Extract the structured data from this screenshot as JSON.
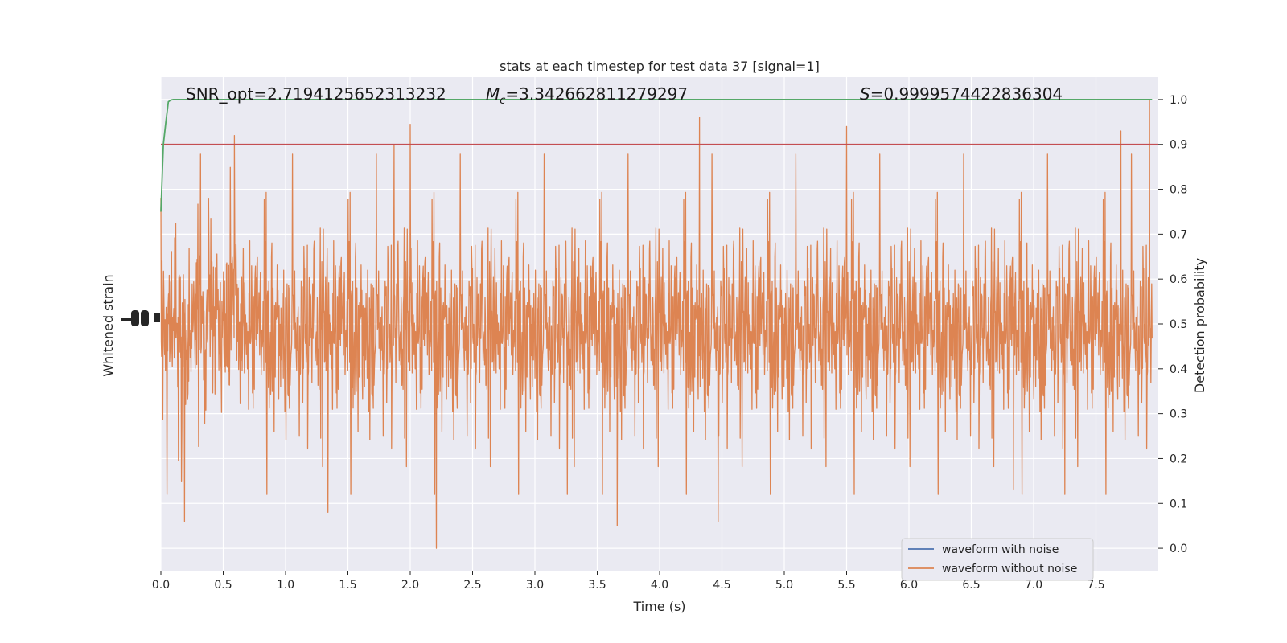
{
  "chart_data": {
    "type": "line",
    "title": "stats at each timestep for test data 37 [signal=1]",
    "xlabel": "Time (s)",
    "ylabel_left": "Whitened strain",
    "ylabel_right": "Detection probability",
    "xlim": [
      0,
      8
    ],
    "ylim_right": [
      -0.05,
      1.05
    ],
    "x_ticks": [
      "0.0",
      "0.5",
      "1.0",
      "1.5",
      "2.0",
      "2.5",
      "3.0",
      "3.5",
      "4.0",
      "4.5",
      "5.0",
      "5.5",
      "6.0",
      "6.5",
      "7.0",
      "7.5"
    ],
    "x_tick_values": [
      0,
      0.5,
      1.0,
      1.5,
      2.0,
      2.5,
      3.0,
      3.5,
      4.0,
      4.5,
      5.0,
      5.5,
      6.0,
      6.5,
      7.0,
      7.5
    ],
    "y_ticks_right": [
      "0.0",
      "0.1",
      "0.2",
      "0.3",
      "0.4",
      "0.5",
      "0.6",
      "0.7",
      "0.8",
      "0.9",
      "1.0"
    ],
    "y_tick_values_right": [
      0.0,
      0.1,
      0.2,
      0.3,
      0.4,
      0.5,
      0.6,
      0.7,
      0.8,
      0.9,
      1.0
    ],
    "annotations": {
      "snr_text": "SNR_opt=2.7194125652313232",
      "mc_symbol": "M",
      "mc_sub": "c",
      "mc_value": "=3.342662811279297",
      "s_symbol": "S",
      "s_value": "=0.9999574422836304"
    },
    "threshold": {
      "value": 0.9,
      "color": "#c44e52"
    },
    "probability_series": {
      "color": "#55a868",
      "x": [
        0.0,
        0.02,
        0.04,
        0.06,
        0.08,
        0.1,
        0.15,
        0.2,
        0.4,
        1.0,
        2.0,
        3.0,
        4.0,
        5.0,
        6.0,
        7.0,
        7.95
      ],
      "y": [
        0.75,
        0.9,
        0.95,
        0.995,
        0.999,
        1.0,
        1.0,
        1.0,
        1.0,
        1.0,
        1.0,
        1.0,
        1.0,
        1.0,
        1.0,
        1.0,
        1.0
      ]
    },
    "series": [
      {
        "name": "waveform with noise",
        "color": "#4c72b0"
      },
      {
        "name": "waveform without noise",
        "color": "#dd8452"
      }
    ],
    "noise_trace": {
      "color": "#dd8452",
      "center": 0.5,
      "dense_band": [
        0.3,
        0.7
      ],
      "y_max": 1.0,
      "y_min": 0.0,
      "x_end": 7.95,
      "notable_spikes": [
        {
          "x": 2.0,
          "y": 0.945
        },
        {
          "x": 4.32,
          "y": 0.96
        },
        {
          "x": 5.5,
          "y": 0.94
        },
        {
          "x": 7.93,
          "y": 1.0
        },
        {
          "x": 7.7,
          "y": 0.93
        },
        {
          "x": 0.59,
          "y": 0.92
        },
        {
          "x": 1.87,
          "y": 0.9
        },
        {
          "x": 2.21,
          "y": 0.0
        },
        {
          "x": 3.66,
          "y": 0.05
        },
        {
          "x": 4.47,
          "y": 0.06
        },
        {
          "x": 0.19,
          "y": 0.06
        },
        {
          "x": 1.34,
          "y": 0.08
        },
        {
          "x": 6.84,
          "y": 0.13
        },
        {
          "x": 7.25,
          "y": 0.12
        },
        {
          "x": 3.26,
          "y": 0.12
        }
      ]
    },
    "grid": true,
    "legend_placement": "lower-right"
  }
}
